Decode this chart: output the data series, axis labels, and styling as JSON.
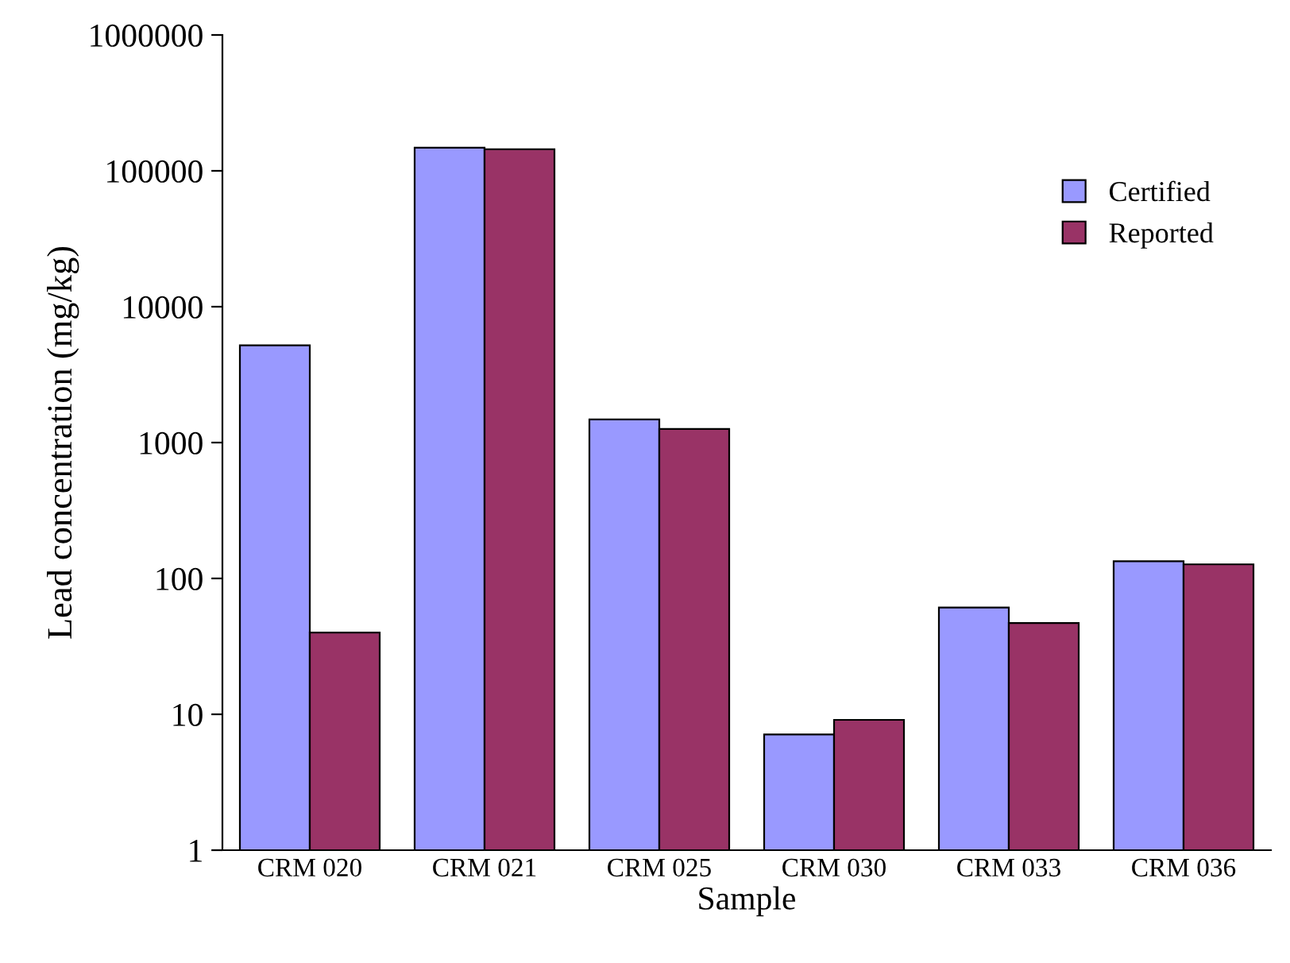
{
  "chart_data": {
    "type": "bar",
    "xlabel": "Sample",
    "ylabel": "Lead concentration (mg/kg)",
    "categories": [
      "CRM 020",
      "CRM 021",
      "CRM 025",
      "CRM 030",
      "CRM 033",
      "CRM 036"
    ],
    "series": [
      {
        "name": "Certified",
        "color": "#9999ff",
        "values": [
          5200,
          148000,
          1480,
          7.1,
          61,
          134
        ]
      },
      {
        "name": "Reported",
        "color": "#993366",
        "values": [
          40,
          144000,
          1260,
          9.1,
          47,
          127
        ]
      }
    ],
    "log": "y",
    "ylim": [
      1,
      1000000
    ],
    "yticks": [
      1,
      10,
      100,
      1000,
      10000,
      100000,
      1000000
    ],
    "grid": false,
    "legend": "right"
  }
}
